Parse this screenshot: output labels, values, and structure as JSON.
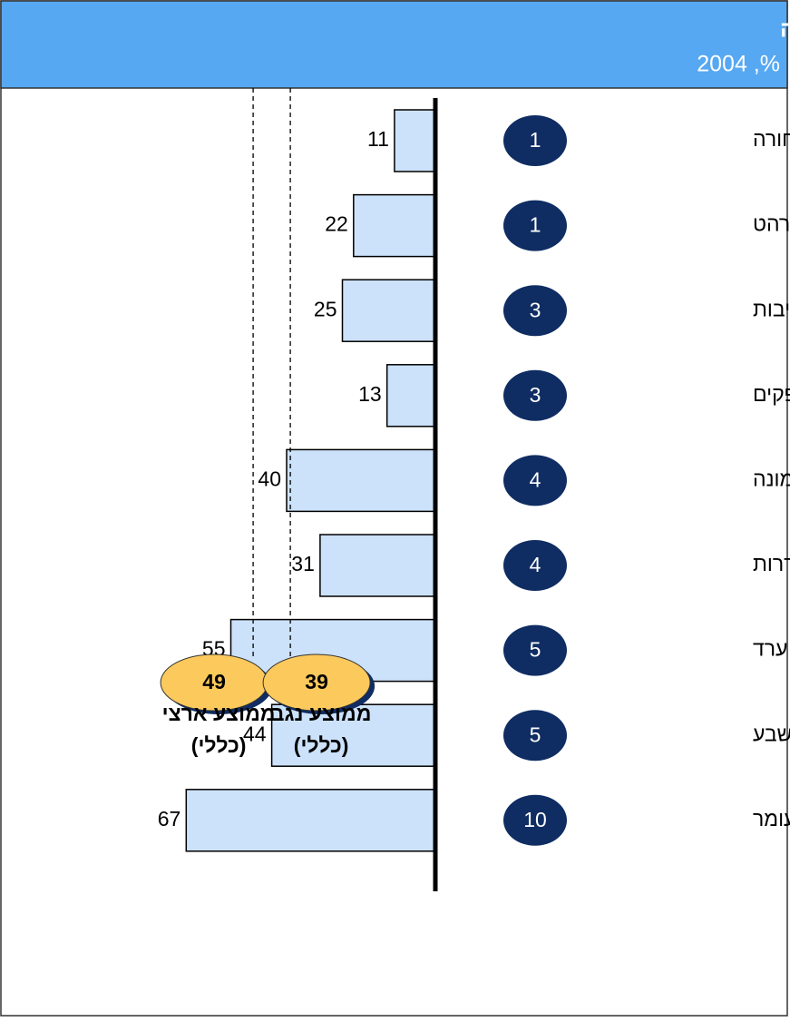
{
  "chart_data": {
    "type": "bar",
    "orientation": "horizontal",
    "title": "שיעור הזכאים לבגרות העומדים בדרישות הסף של האוניברסיטה",
    "subtitle": "2004 ,%",
    "categories": [
      "חורה",
      "רהט",
      "נתיבות",
      "אופקים",
      "דימונה",
      "שדרות",
      "ערד",
      "באר שבע",
      "עומר"
    ],
    "values": [
      11,
      22,
      25,
      13,
      40,
      31,
      55,
      44,
      67
    ],
    "clusters": [
      1,
      1,
      3,
      3,
      4,
      4,
      5,
      5,
      10
    ],
    "color": "#cce1fa",
    "cluster_color": "#0f2d63",
    "xlim": [
      0,
      70
    ],
    "reference_lines": [
      {
        "value": 49,
        "label": "ממוצע ארצי",
        "note": "(כללי)"
      },
      {
        "value": 39,
        "label": "ממוצע נגב",
        "note": "(כללי)"
      }
    ],
    "reference_color": "#fcc95c"
  }
}
